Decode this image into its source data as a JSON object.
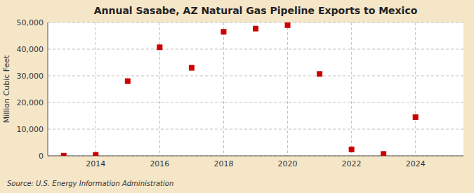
{
  "chart_data": {
    "type": "scatter",
    "title": "Annual Sasabe, AZ  Natural Gas Pipeline Exports to Mexico",
    "ylabel": "Million Cubic Feet",
    "source": "Source: U.S. Energy Information Administration",
    "x": [
      2013,
      2014,
      2015,
      2016,
      2017,
      2018,
      2019,
      2020,
      2021,
      2022,
      2023,
      2024
    ],
    "values": [
      50,
      350,
      28000,
      40700,
      33000,
      46500,
      47700,
      49000,
      30700,
      2400,
      700,
      14500
    ],
    "color": "#cc0000",
    "marker": "square",
    "xlim": [
      2012.5,
      2025.5
    ],
    "ylim": [
      0,
      50000
    ],
    "xticks": [
      2014,
      2016,
      2018,
      2020,
      2022,
      2024
    ],
    "yticks": [
      0,
      {
        "value": 10000,
        "label": "10,000"
      },
      {
        "value": 20000,
        "label": "20,000"
      },
      {
        "value": 30000,
        "label": "30,000"
      },
      {
        "value": 40000,
        "label": "40,000"
      },
      {
        "value": 50000,
        "label": "50,000"
      }
    ],
    "grid": true
  }
}
